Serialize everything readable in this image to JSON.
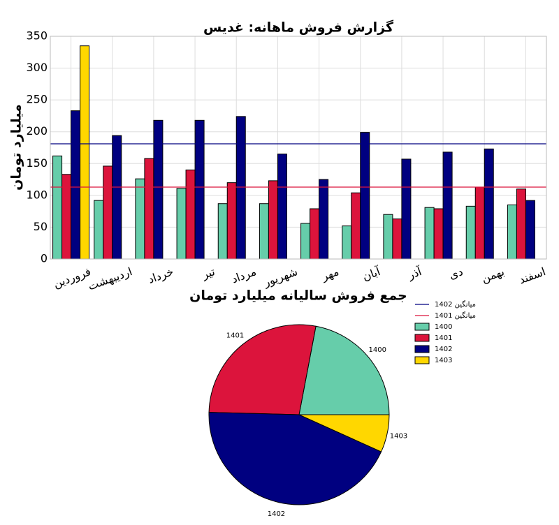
{
  "chart_data": [
    {
      "type": "bar",
      "title": "گزارش فروش ماهانه: غدیس",
      "y_label": "میلیارد تومان",
      "categories": [
        "فروردین",
        "اردیبهشت",
        "خرداد",
        "تیر",
        "مرداد",
        "شهریور",
        "مهر",
        "آبان",
        "آذر",
        "دی",
        "بهمن",
        "اسفند"
      ],
      "series": [
        {
          "name": "1400",
          "color": "#66cdaa",
          "values": [
            162,
            92,
            126,
            111,
            87,
            87,
            56,
            52,
            70,
            81,
            83,
            85
          ]
        },
        {
          "name": "1401",
          "color": "#dc143c",
          "values": [
            133,
            146,
            158,
            140,
            120,
            123,
            79,
            104,
            63,
            79,
            113,
            110
          ]
        },
        {
          "name": "1402",
          "color": "#000080",
          "values": [
            233,
            194,
            218,
            218,
            224,
            165,
            125,
            199,
            157,
            168,
            173,
            92
          ]
        },
        {
          "name": "1403",
          "color": "#ffd700",
          "values": [
            335,
            0,
            0,
            0,
            0,
            0,
            0,
            0,
            0,
            0,
            0,
            0
          ]
        }
      ],
      "reference_lines": [
        {
          "name": "میانگین 1402",
          "value": 181,
          "color": "#000080"
        },
        {
          "name": "میانگین 1401",
          "value": 113,
          "color": "#dc143c"
        }
      ],
      "ylim": [
        0,
        350
      ],
      "yticks": [
        0,
        50,
        100,
        150,
        200,
        250,
        300,
        350
      ],
      "grid": true,
      "legend": true
    },
    {
      "type": "pie",
      "title": "جمع فروش سالیانه میلیارد تومان",
      "categories": [
        "1400",
        "1401",
        "1402",
        "1403"
      ],
      "values": [
        1092,
        1368,
        2166,
        335
      ],
      "colors": [
        "#66cdaa",
        "#dc143c",
        "#000080",
        "#ffd700"
      ]
    }
  ]
}
